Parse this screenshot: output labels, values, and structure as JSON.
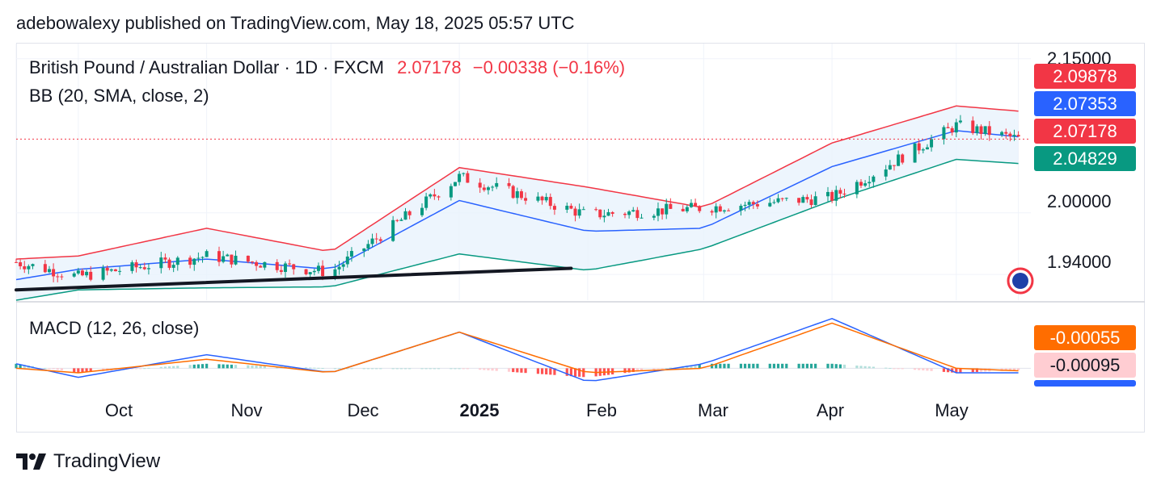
{
  "publisher_line": "adebowalexy published on TradingView.com, May 18, 2025 05:57 UTC",
  "brand": "TradingView",
  "legend": {
    "symbol": "British Pound / Australian Dollar · 1D · FXCM",
    "last": "2.07178",
    "change": "−0.00338 (−0.16%)",
    "bb": "BB (20, SMA, close, 2)",
    "macd": "MACD (12, 26, close)"
  },
  "price_scale": [
    "2.15000",
    "2.00000",
    "1.94000"
  ],
  "tags": {
    "bb_upper": "2.09878",
    "bb_basis": "2.07353",
    "last": "2.07178",
    "bb_lower": "2.04829",
    "macd_signal": "-0.00055",
    "macd_hist": "-0.00095"
  },
  "colors": {
    "up": "#089981",
    "down": "#f23645",
    "bb_upper": "#f23645",
    "bb_basis": "#2962ff",
    "bb_lower": "#089981",
    "bb_fill": "#e8f2fc",
    "macd_line": "#2962ff",
    "signal_line": "#ff6d00",
    "trendline": "#131722",
    "tag_signal": "#ff6d00",
    "tag_hist": "#ffcdd2"
  },
  "x_axis": [
    {
      "label": "Oct",
      "bold": false
    },
    {
      "label": "Nov",
      "bold": false
    },
    {
      "label": "Dec",
      "bold": false
    },
    {
      "label": "2025",
      "bold": true
    },
    {
      "label": "Feb",
      "bold": false
    },
    {
      "label": "Mar",
      "bold": false
    },
    {
      "label": "Apr",
      "bold": false
    },
    {
      "label": "May",
      "bold": false
    }
  ],
  "chart_data": {
    "type": "line",
    "title": "British Pound / Australian Dollar · 1D · FXCM",
    "price_ticks": [
      2.15,
      2.0,
      1.94
    ],
    "ylim": [
      1.915,
      2.16
    ],
    "x_dates": [
      "2024-09-16",
      "2024-10-01",
      "2024-11-01",
      "2024-12-01",
      "2025-01-01",
      "2025-02-01",
      "2025-03-01",
      "2025-04-01",
      "2025-05-01",
      "2025-05-16"
    ],
    "close": [
      1.952,
      1.938,
      1.958,
      1.942,
      2.035,
      1.998,
      2.005,
      2.015,
      2.085,
      2.072
    ],
    "series": [
      {
        "name": "BB upper",
        "values": [
          1.955,
          1.958,
          1.985,
          1.962,
          2.044,
          2.025,
          2.005,
          2.068,
          2.104,
          2.099
        ]
      },
      {
        "name": "BB basis",
        "values": [
          1.935,
          1.945,
          1.955,
          1.945,
          2.012,
          1.982,
          1.985,
          2.045,
          2.08,
          2.074
        ]
      },
      {
        "name": "BB lower",
        "values": [
          1.915,
          1.925,
          1.927,
          1.928,
          1.96,
          1.944,
          1.965,
          2.012,
          2.052,
          2.048
        ]
      }
    ],
    "trendline": {
      "start": [
        "2024-09-16",
        1.925
      ],
      "end": [
        "2025-01-28",
        1.946
      ]
    },
    "macd": {
      "macd_line": [
        0.001,
        -0.002,
        0.003,
        -0.001,
        0.008,
        -0.003,
        0.001,
        0.011,
        -0.001,
        -0.001
      ],
      "signal_line": [
        0.0,
        -0.001,
        0.002,
        -0.001,
        0.008,
        -0.001,
        0.0,
        0.01,
        0.0,
        -0.00055
      ],
      "histogram_last": -0.00095
    },
    "last_price": 2.07178,
    "grid": true
  }
}
